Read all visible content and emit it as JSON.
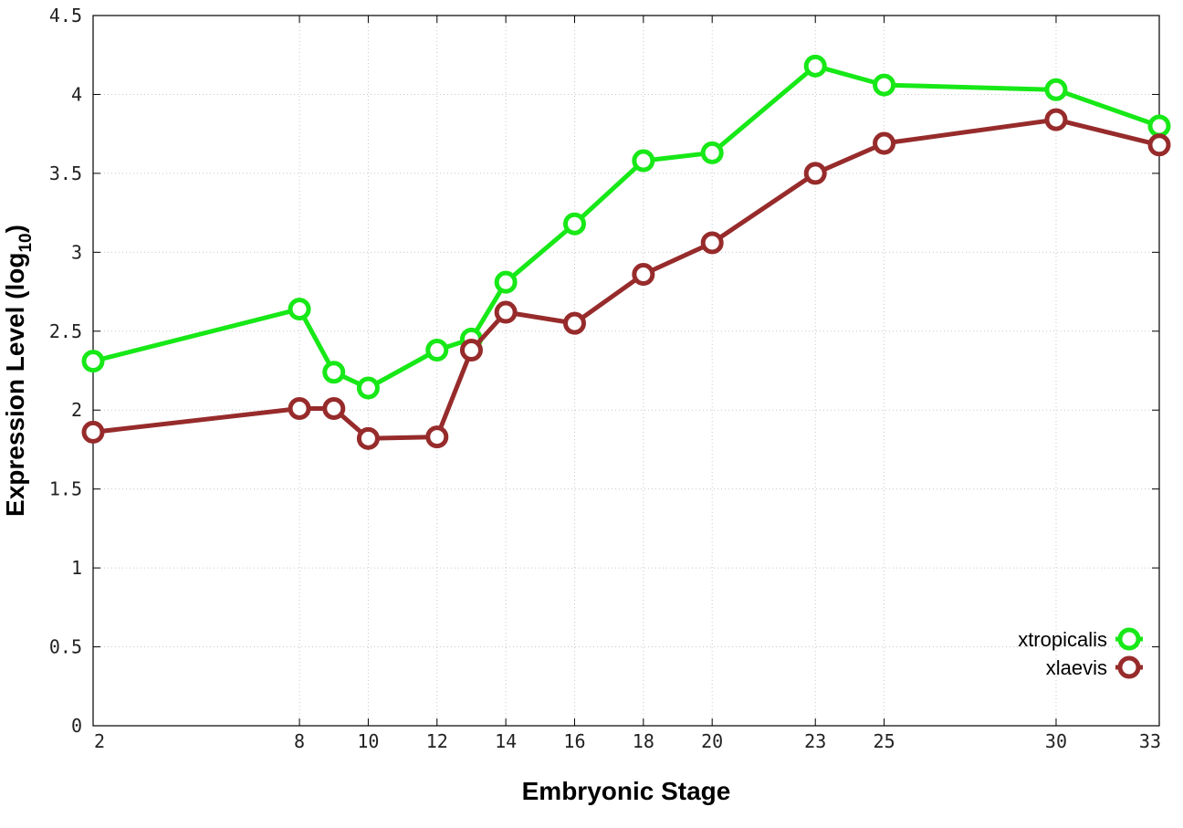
{
  "chart_data": {
    "type": "line",
    "title": "",
    "xlabel": "Embryonic Stage",
    "ylabel_main": "Expression Level (log",
    "ylabel_sub": "10",
    "ylabel_end": ")",
    "x": [
      2,
      8,
      9,
      10,
      12,
      13,
      14,
      16,
      18,
      20,
      23,
      25,
      30,
      33
    ],
    "x_ticks": [
      2,
      8,
      10,
      12,
      14,
      16,
      18,
      20,
      23,
      25,
      30,
      33
    ],
    "x_tick_labels": [
      "2",
      "8",
      "10",
      "12",
      "14",
      "16",
      "18",
      "20",
      "23",
      "25",
      "30",
      "33"
    ],
    "y_ticks": [
      0,
      0.5,
      1,
      1.5,
      2,
      2.5,
      3,
      3.5,
      4,
      4.5
    ],
    "y_tick_labels": [
      "0",
      "0.5",
      "1",
      "1.5",
      "2",
      "2.5",
      "3",
      "3.5",
      "4",
      "4.5"
    ],
    "xlim": [
      2,
      33
    ],
    "ylim": [
      0,
      4.5
    ],
    "grid": true,
    "legend_position": "bottom-right",
    "series": [
      {
        "name": "xtropicalis",
        "color": "#17e817",
        "values": [
          2.31,
          2.64,
          2.24,
          2.14,
          2.38,
          2.45,
          2.81,
          3.18,
          3.58,
          3.63,
          4.18,
          4.06,
          4.03,
          3.8
        ]
      },
      {
        "name": "xlaevis",
        "color": "#972b2b",
        "values": [
          1.86,
          2.01,
          2.01,
          1.82,
          1.83,
          2.38,
          2.62,
          2.55,
          2.86,
          3.06,
          3.5,
          3.69,
          3.84,
          3.68
        ]
      }
    ]
  }
}
